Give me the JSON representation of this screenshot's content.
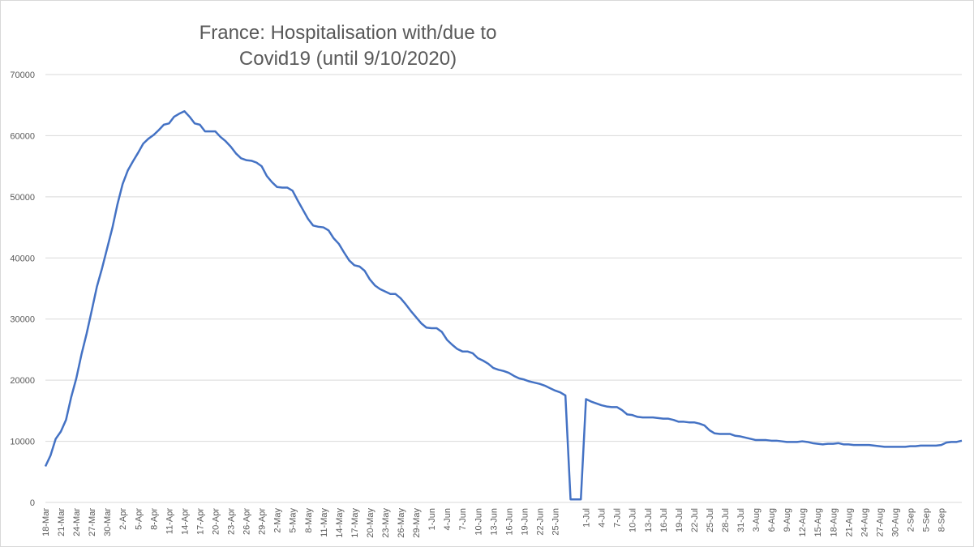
{
  "chart_data": {
    "type": "line",
    "title_lines": [
      "France: Hospitalisation with/due to",
      "Covid19 (until 9/10/2020)"
    ],
    "xlabel": "",
    "ylabel": "",
    "ylim": [
      0,
      70000
    ],
    "yticks": [
      0,
      10000,
      20000,
      30000,
      40000,
      50000,
      60000,
      70000
    ],
    "ytick_labels": [
      "0",
      "10000",
      "20000",
      "30000",
      "40000",
      "50000",
      "60000",
      "70000"
    ],
    "grid": "horizontal",
    "legend": "none",
    "line_color": "#4472c4",
    "x_tick_labels": [
      "18-Mar",
      "21-Mar",
      "24-Mar",
      "27-Mar",
      "30-Mar",
      "2-Apr",
      "5-Apr",
      "8-Apr",
      "11-Apr",
      "14-Apr",
      "17-Apr",
      "20-Apr",
      "23-Apr",
      "26-Apr",
      "29-Apr",
      "2-May",
      "5-May",
      "8-May",
      "11-May",
      "14-May",
      "17-May",
      "20-May",
      "23-May",
      "26-May",
      "29-May",
      "1-Jun",
      "4-Jun",
      "7-Jun",
      "10-Jun",
      "13-Jun",
      "16-Jun",
      "19-Jun",
      "22-Jun",
      "25-Jun",
      "",
      "1-Jul",
      "4-Jul",
      "7-Jul",
      "10-Jul",
      "13-Jul",
      "16-Jul",
      "19-Jul",
      "22-Jul",
      "25-Jul",
      "28-Jul",
      "31-Jul",
      "3-Aug",
      "6-Aug",
      "9-Aug",
      "12-Aug",
      "15-Aug",
      "18-Aug",
      "21-Aug",
      "24-Aug",
      "27-Aug",
      "30-Aug",
      "2-Sep",
      "5-Sep",
      "8-Sep"
    ],
    "series": [
      {
        "values": [
          5900,
          7700,
          10400,
          11600,
          13500,
          17200,
          20300,
          24200,
          27600,
          31400,
          35300,
          38300,
          41600,
          44900,
          48800,
          52100,
          54300,
          55800,
          57200,
          58700,
          59500,
          60100,
          60900,
          61800,
          62000,
          63100,
          63600,
          64000,
          63100,
          62000,
          61800,
          60700,
          60700,
          60700,
          59800,
          59100,
          58200,
          57100,
          56300,
          56000,
          55900,
          55600,
          55000,
          53400,
          52400,
          51600,
          51500,
          51500,
          51000,
          49400,
          47900,
          46400,
          45300,
          45100,
          45000,
          44500,
          43200,
          42300,
          40900,
          39600,
          38800,
          38600,
          37900,
          36500,
          35500,
          34900,
          34500,
          34100,
          34100,
          33400,
          32400,
          31300,
          30300,
          29300,
          28600,
          28500,
          28500,
          27900,
          26600,
          25800,
          25100,
          24700,
          24700,
          24400,
          23600,
          23200,
          22700,
          22000,
          21700,
          21500,
          21200,
          20700,
          20300,
          20100,
          19800,
          19600,
          19400,
          19100,
          18700,
          18300,
          18000,
          17500,
          500,
          500,
          500,
          16900,
          16500,
          16200,
          15900,
          15700,
          15600,
          15600,
          15100,
          14400,
          14300,
          14000,
          13900,
          13900,
          13900,
          13800,
          13700,
          13700,
          13500,
          13200,
          13200,
          13100,
          13100,
          12900,
          12600,
          11800,
          11300,
          11200,
          11200,
          11200,
          10900,
          10800,
          10600,
          10400,
          10200,
          10200,
          10200,
          10100,
          10100,
          10000,
          9900,
          9900,
          9900,
          10000,
          9900,
          9700,
          9600,
          9500,
          9600,
          9600,
          9700,
          9500,
          9500,
          9400,
          9400,
          9400,
          9400,
          9300,
          9200,
          9100,
          9100,
          9100,
          9100,
          9100,
          9200,
          9200,
          9300,
          9300,
          9300,
          9300,
          9400,
          9800,
          9900,
          9900,
          10100
        ]
      }
    ]
  }
}
